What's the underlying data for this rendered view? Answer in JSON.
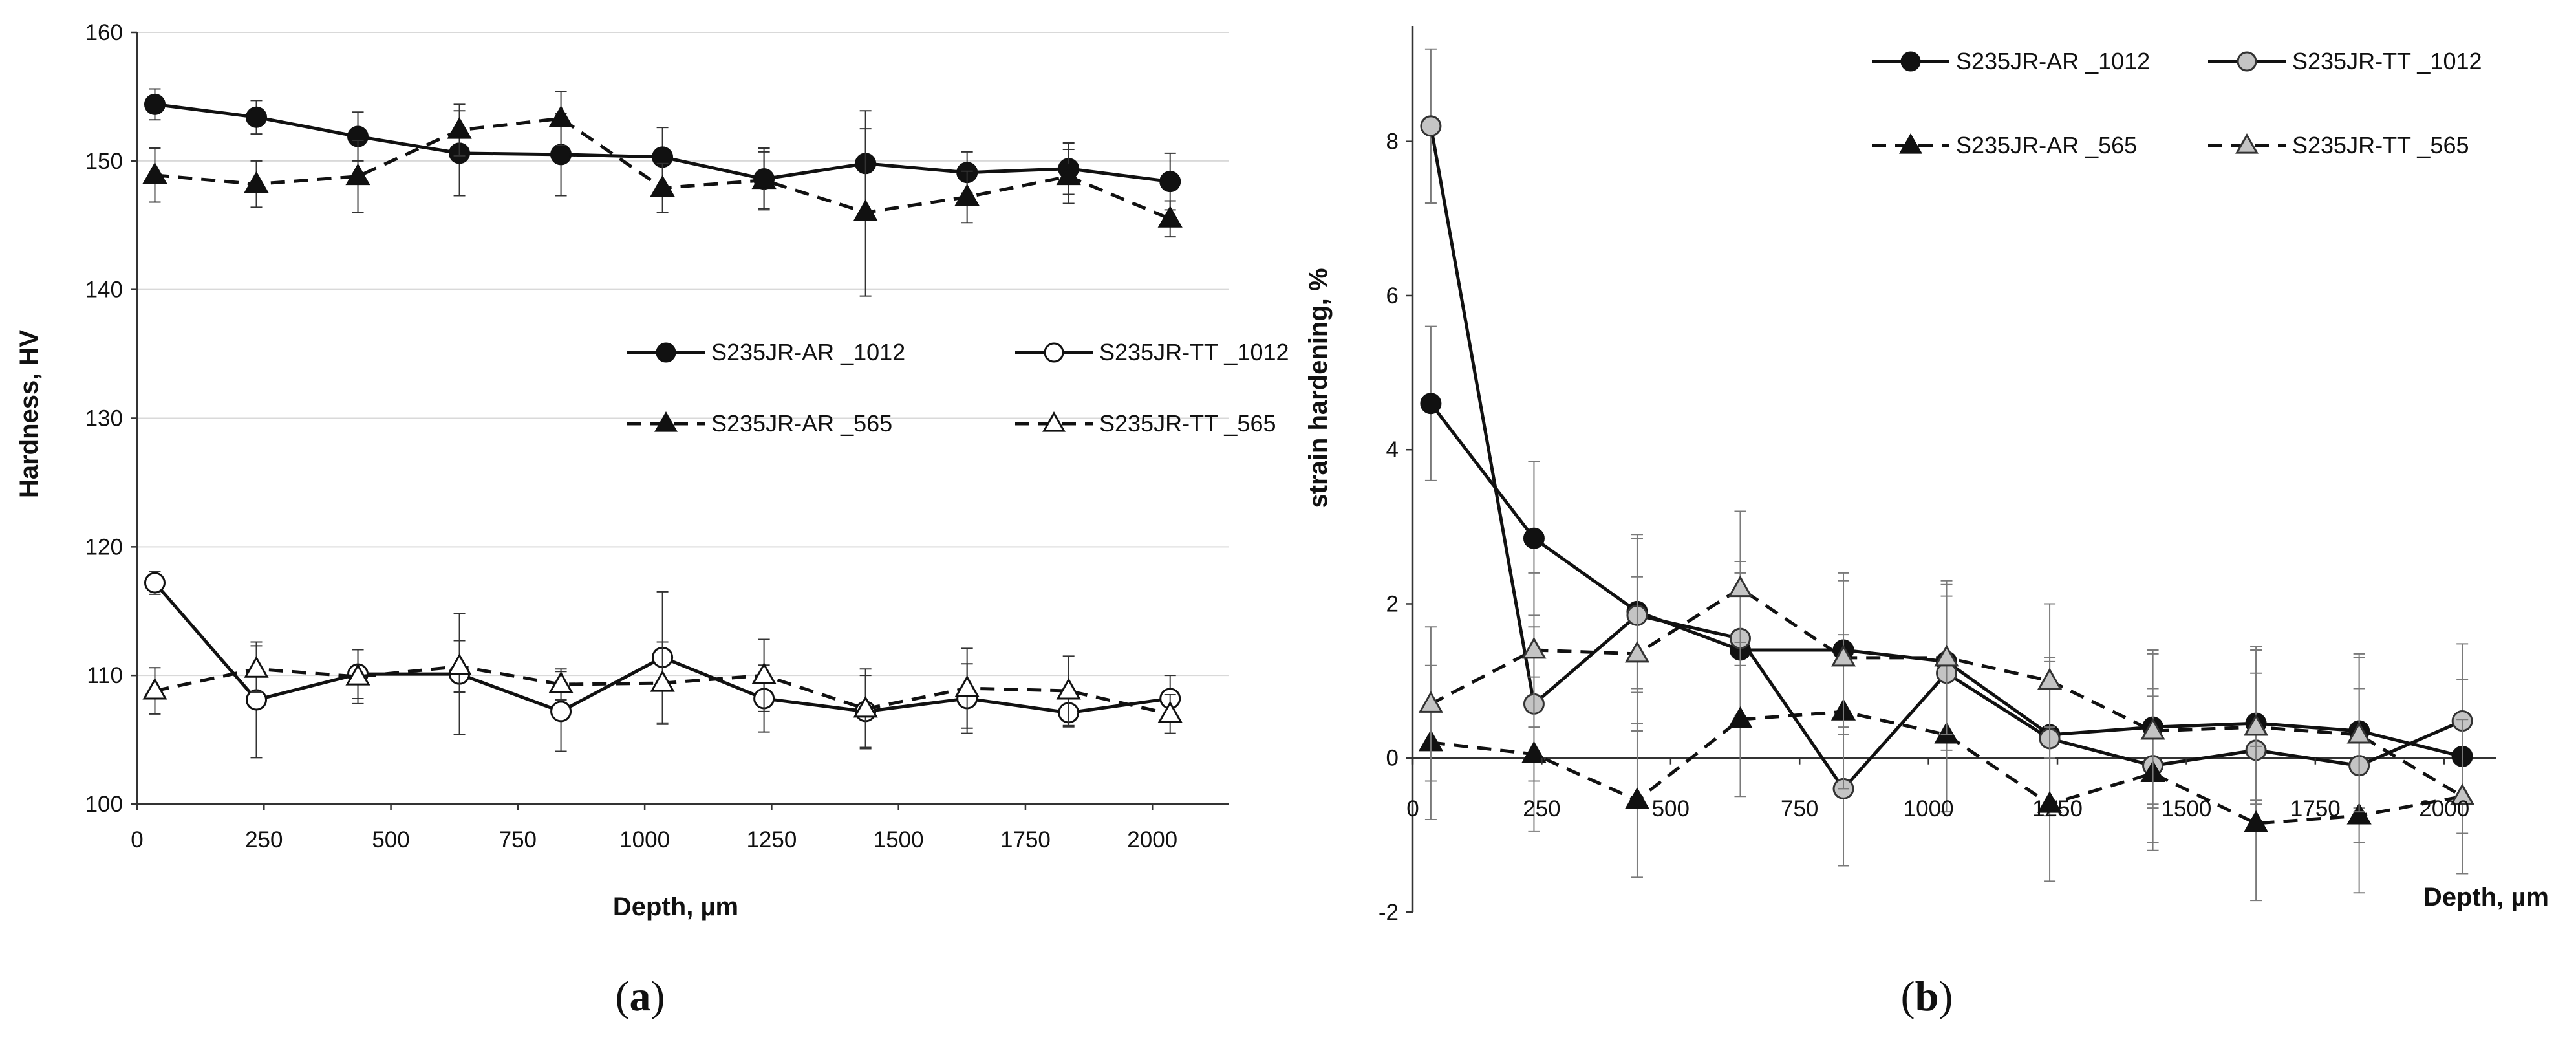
{
  "chart_data": [
    {
      "type": "line",
      "panel": "a",
      "caption": {
        "open": "(",
        "letter": "a",
        "close": ")"
      },
      "xlabel": "Depth, µm",
      "ylabel": "Hardness, HV",
      "xlim": [
        0,
        2150
      ],
      "ylim": [
        100,
        160
      ],
      "xticks": [
        0,
        250,
        500,
        750,
        1000,
        1250,
        1500,
        1750,
        2000
      ],
      "yticks": [
        100,
        110,
        120,
        130,
        140,
        150,
        160
      ],
      "x": [
        35,
        235,
        435,
        635,
        835,
        1035,
        1235,
        1435,
        1635,
        1835,
        2035
      ],
      "legend_position": "center-right",
      "series": [
        {
          "name": "S235JR-AR _1012",
          "style": "solid",
          "marker": "circle-filled",
          "values": [
            154.4,
            153.4,
            151.9,
            150.6,
            150.5,
            150.3,
            148.6,
            149.8,
            149.1,
            149.4,
            148.4
          ],
          "errors": [
            1.2,
            1.3,
            1.9,
            3.3,
            3.2,
            2.3,
            2.4,
            4.1,
            1.6,
            2.0,
            2.2
          ]
        },
        {
          "name": "S235JR-TT _1012",
          "style": "solid",
          "marker": "circle-open",
          "values": [
            117.2,
            108.1,
            110.1,
            110.1,
            107.2,
            111.4,
            108.2,
            107.2,
            108.2,
            107.1,
            108.2
          ],
          "errors": [
            0.9,
            4.5,
            1.9,
            4.7,
            3.1,
            5.1,
            2.6,
            2.8,
            2.7,
            1.1,
            1.8
          ]
        },
        {
          "name": "S235JR-AR _565",
          "style": "dashed",
          "marker": "triangle-filled",
          "values": [
            148.9,
            148.2,
            148.8,
            152.4,
            153.3,
            147.9,
            148.5,
            146.0,
            147.2,
            148.8,
            145.5
          ],
          "errors": [
            2.1,
            1.8,
            2.8,
            2.0,
            2.1,
            1.9,
            2.2,
            6.5,
            2.0,
            2.1,
            1.4
          ]
        },
        {
          "name": "S235JR-TT _565",
          "style": "dashed",
          "marker": "triangle-open",
          "values": [
            108.8,
            110.5,
            109.9,
            110.7,
            109.3,
            109.4,
            110.0,
            107.4,
            109.0,
            108.8,
            107.0
          ],
          "errors": [
            1.8,
            1.8,
            2.1,
            2.0,
            1.2,
            3.2,
            2.8,
            3.1,
            3.1,
            2.7,
            1.5
          ]
        }
      ]
    },
    {
      "type": "line",
      "panel": "b",
      "caption": {
        "open": "(",
        "letter": "b",
        "close": ")"
      },
      "xlabel": "Depth, µm",
      "ylabel": "strain hardening, %",
      "xlim": [
        0,
        2100
      ],
      "ylim": [
        -2,
        9.5
      ],
      "xticks": [
        0,
        250,
        500,
        750,
        1000,
        1250,
        1500,
        1750,
        2000
      ],
      "yticks": [
        -2,
        0,
        2,
        4,
        6,
        8
      ],
      "x": [
        35,
        235,
        435,
        635,
        835,
        1035,
        1235,
        1435,
        1635,
        1835,
        2035
      ],
      "legend_position": "top-right",
      "series": [
        {
          "name": "S235JR-AR _1012",
          "style": "solid",
          "marker": "circle-filled",
          "values": [
            4.6,
            2.85,
            1.9,
            1.4,
            1.4,
            1.25,
            0.3,
            0.4,
            0.45,
            0.35,
            0.02
          ],
          "errors": [
            1.0,
            1.0,
            1.0,
            1.0,
            1.0,
            1.0,
            1.0,
            1.0,
            1.0,
            1.0,
            1.0
          ]
        },
        {
          "name": "S235JR-TT _1012",
          "style": "solid",
          "marker": "circle-gray",
          "values": [
            8.2,
            0.7,
            1.85,
            1.55,
            -0.4,
            1.1,
            0.25,
            -0.1,
            0.1,
            -0.1,
            0.48
          ],
          "errors": [
            1.0,
            1.0,
            1.0,
            1.0,
            1.0,
            1.0,
            1.0,
            1.0,
            1.0,
            1.0,
            1.0
          ]
        },
        {
          "name": "S235JR-AR _565",
          "style": "dashed",
          "marker": "triangle-filled",
          "values": [
            0.2,
            0.05,
            -0.55,
            0.5,
            0.6,
            0.3,
            -0.6,
            -0.2,
            -0.85,
            -0.75,
            -0.5
          ],
          "errors": [
            1.0,
            1.0,
            1.0,
            1.0,
            1.0,
            1.0,
            1.0,
            1.0,
            1.0,
            1.0,
            1.0
          ]
        },
        {
          "name": "S235JR-TT _565",
          "style": "dashed",
          "marker": "triangle-gray",
          "values": [
            0.7,
            1.4,
            1.35,
            2.2,
            1.3,
            1.3,
            1.0,
            0.35,
            0.4,
            0.3,
            -0.5
          ],
          "errors": [
            1.0,
            1.0,
            1.0,
            1.0,
            1.0,
            1.0,
            1.0,
            1.0,
            1.0,
            1.0,
            1.0
          ]
        }
      ]
    }
  ]
}
